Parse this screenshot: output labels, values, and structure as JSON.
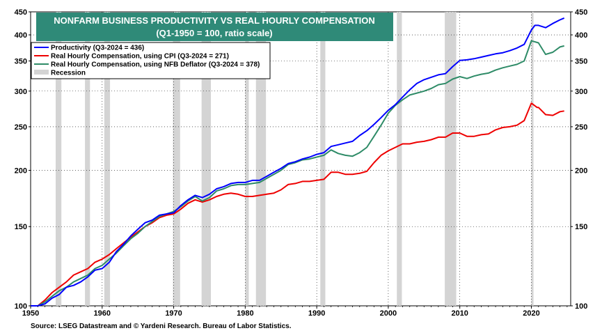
{
  "chart_data": {
    "type": "line",
    "title": "NONFARM BUSINESS PRODUCTIVITY VS REAL HOURLY COMPENSATION",
    "subtitle": "(Q1-1950 = 100, ratio scale)",
    "source": "Source: LSEG Datastream and © Yardeni Research. Bureau of Labor Statistics.",
    "y_scale": "log",
    "xlim": [
      1950,
      2025.5
    ],
    "ylim": [
      100,
      450
    ],
    "x_ticks": [
      {
        "value": 1950,
        "label": "1950"
      },
      {
        "value": 1960,
        "label": "1960"
      },
      {
        "value": 1970,
        "label": "1970"
      },
      {
        "value": 1980,
        "label": "1980"
      },
      {
        "value": 1990,
        "label": "1990"
      },
      {
        "value": 2000,
        "label": "2000"
      },
      {
        "value": 2010,
        "label": "2010"
      },
      {
        "value": 2020,
        "label": "2020"
      }
    ],
    "y_ticks": [
      {
        "value": 100,
        "label": "100"
      },
      {
        "value": 150,
        "label": "150"
      },
      {
        "value": 200,
        "label": "200"
      },
      {
        "value": 250,
        "label": "250"
      },
      {
        "value": 300,
        "label": "300"
      },
      {
        "value": 350,
        "label": "350"
      },
      {
        "value": 400,
        "label": "400"
      },
      {
        "value": 450,
        "label": "450"
      }
    ],
    "grid": true,
    "legend_position": "top-left",
    "recession_label": "Recession",
    "recession_color": "#d4d4d4",
    "recessions": [
      [
        1953.5,
        1954.3
      ],
      [
        1957.6,
        1958.3
      ],
      [
        1960.3,
        1961.1
      ],
      [
        1969.9,
        1970.9
      ],
      [
        1973.9,
        1975.2
      ],
      [
        1980.0,
        1980.5
      ],
      [
        1981.5,
        1982.9
      ],
      [
        1990.5,
        1991.2
      ],
      [
        2001.2,
        2001.9
      ],
      [
        2007.9,
        2009.5
      ],
      [
        2020.0,
        2020.3
      ]
    ],
    "series": [
      {
        "name": "Productivity (Q3-2024 = 436)",
        "color": "#0000ff",
        "points": [
          [
            1950,
            100
          ],
          [
            1951,
            100
          ],
          [
            1952,
            101
          ],
          [
            1953,
            104
          ],
          [
            1954,
            106
          ],
          [
            1955,
            110
          ],
          [
            1956,
            111
          ],
          [
            1957,
            113
          ],
          [
            1958,
            116
          ],
          [
            1959,
            120
          ],
          [
            1960,
            121
          ],
          [
            1961,
            125
          ],
          [
            1962,
            132
          ],
          [
            1963,
            137
          ],
          [
            1964,
            143
          ],
          [
            1965,
            148
          ],
          [
            1966,
            153
          ],
          [
            1967,
            155
          ],
          [
            1968,
            159
          ],
          [
            1969,
            160
          ],
          [
            1970,
            161
          ],
          [
            1971,
            167
          ],
          [
            1972,
            172
          ],
          [
            1973,
            176
          ],
          [
            1974,
            174
          ],
          [
            1975,
            177
          ],
          [
            1976,
            182
          ],
          [
            1977,
            184
          ],
          [
            1978,
            187
          ],
          [
            1979,
            188
          ],
          [
            1980,
            188
          ],
          [
            1981,
            190
          ],
          [
            1982,
            190
          ],
          [
            1983,
            194
          ],
          [
            1984,
            198
          ],
          [
            1985,
            202
          ],
          [
            1986,
            207
          ],
          [
            1987,
            209
          ],
          [
            1988,
            212
          ],
          [
            1989,
            214
          ],
          [
            1990,
            217
          ],
          [
            1991,
            219
          ],
          [
            1992,
            226
          ],
          [
            1993,
            228
          ],
          [
            1994,
            230
          ],
          [
            1995,
            232
          ],
          [
            1996,
            239
          ],
          [
            1997,
            245
          ],
          [
            1998,
            253
          ],
          [
            1999,
            262
          ],
          [
            2000,
            272
          ],
          [
            2001,
            280
          ],
          [
            2002,
            291
          ],
          [
            2003,
            302
          ],
          [
            2004,
            312
          ],
          [
            2005,
            318
          ],
          [
            2006,
            322
          ],
          [
            2007,
            326
          ],
          [
            2008,
            328
          ],
          [
            2009,
            340
          ],
          [
            2010,
            351
          ],
          [
            2011,
            352
          ],
          [
            2012,
            354
          ],
          [
            2013,
            357
          ],
          [
            2014,
            360
          ],
          [
            2015,
            363
          ],
          [
            2016,
            365
          ],
          [
            2017,
            369
          ],
          [
            2018,
            374
          ],
          [
            2019,
            381
          ],
          [
            2020,
            410
          ],
          [
            2020.5,
            420
          ],
          [
            2021,
            420
          ],
          [
            2022,
            415
          ],
          [
            2023,
            424
          ],
          [
            2024,
            432
          ],
          [
            2024.6,
            436
          ]
        ]
      },
      {
        "name": "Real Hourly Compensation, using CPI  (Q3-2024 = 271)",
        "color": "#ee0000",
        "points": [
          [
            1950,
            100
          ],
          [
            1951,
            100
          ],
          [
            1952,
            103
          ],
          [
            1953,
            107
          ],
          [
            1954,
            110
          ],
          [
            1955,
            113
          ],
          [
            1956,
            117
          ],
          [
            1957,
            119
          ],
          [
            1958,
            121
          ],
          [
            1959,
            125
          ],
          [
            1960,
            127
          ],
          [
            1961,
            130
          ],
          [
            1962,
            134
          ],
          [
            1963,
            138
          ],
          [
            1964,
            142
          ],
          [
            1965,
            146
          ],
          [
            1966,
            150
          ],
          [
            1967,
            153
          ],
          [
            1968,
            157
          ],
          [
            1969,
            159
          ],
          [
            1970,
            160
          ],
          [
            1971,
            164
          ],
          [
            1972,
            169
          ],
          [
            1973,
            172
          ],
          [
            1974,
            170
          ],
          [
            1975,
            172
          ],
          [
            1976,
            175
          ],
          [
            1977,
            177
          ],
          [
            1978,
            178
          ],
          [
            1979,
            177
          ],
          [
            1980,
            175
          ],
          [
            1981,
            175
          ],
          [
            1982,
            176
          ],
          [
            1983,
            177
          ],
          [
            1984,
            178
          ],
          [
            1985,
            181
          ],
          [
            1986,
            186
          ],
          [
            1987,
            187
          ],
          [
            1988,
            189
          ],
          [
            1989,
            189
          ],
          [
            1990,
            190
          ],
          [
            1991,
            191
          ],
          [
            1992,
            198
          ],
          [
            1993,
            198
          ],
          [
            1994,
            196
          ],
          [
            1995,
            196
          ],
          [
            1996,
            197
          ],
          [
            1997,
            199
          ],
          [
            1998,
            208
          ],
          [
            1999,
            216
          ],
          [
            2000,
            221
          ],
          [
            2001,
            225
          ],
          [
            2002,
            229
          ],
          [
            2003,
            229
          ],
          [
            2004,
            231
          ],
          [
            2005,
            232
          ],
          [
            2006,
            234
          ],
          [
            2007,
            237
          ],
          [
            2008,
            237
          ],
          [
            2009,
            242
          ],
          [
            2010,
            242
          ],
          [
            2011,
            238
          ],
          [
            2012,
            238
          ],
          [
            2013,
            240
          ],
          [
            2014,
            241
          ],
          [
            2015,
            246
          ],
          [
            2016,
            249
          ],
          [
            2017,
            250
          ],
          [
            2018,
            252
          ],
          [
            2019,
            258
          ],
          [
            2020,
            282
          ],
          [
            2020.8,
            276
          ],
          [
            2021,
            276
          ],
          [
            2022,
            266
          ],
          [
            2023,
            265
          ],
          [
            2024,
            270
          ],
          [
            2024.6,
            271
          ]
        ]
      },
      {
        "name": "Real Hourly Compensation, using NFB Deflator (Q3-2024 = 378)",
        "color": "#2e8b67",
        "points": [
          [
            1950,
            100
          ],
          [
            1951,
            100
          ],
          [
            1952,
            102
          ],
          [
            1953,
            105
          ],
          [
            1954,
            108
          ],
          [
            1955,
            110
          ],
          [
            1956,
            113
          ],
          [
            1957,
            115
          ],
          [
            1958,
            117
          ],
          [
            1959,
            121
          ],
          [
            1960,
            123
          ],
          [
            1961,
            127
          ],
          [
            1962,
            131
          ],
          [
            1963,
            136
          ],
          [
            1964,
            141
          ],
          [
            1965,
            145
          ],
          [
            1966,
            150
          ],
          [
            1967,
            154
          ],
          [
            1968,
            158
          ],
          [
            1969,
            160
          ],
          [
            1970,
            162
          ],
          [
            1971,
            166
          ],
          [
            1972,
            171
          ],
          [
            1973,
            175
          ],
          [
            1974,
            171
          ],
          [
            1975,
            174
          ],
          [
            1976,
            180
          ],
          [
            1977,
            182
          ],
          [
            1978,
            185
          ],
          [
            1979,
            186
          ],
          [
            1980,
            186
          ],
          [
            1981,
            187
          ],
          [
            1982,
            188
          ],
          [
            1983,
            192
          ],
          [
            1984,
            196
          ],
          [
            1985,
            200
          ],
          [
            1986,
            206
          ],
          [
            1987,
            208
          ],
          [
            1988,
            211
          ],
          [
            1989,
            212
          ],
          [
            1990,
            214
          ],
          [
            1991,
            216
          ],
          [
            1992,
            222
          ],
          [
            1993,
            218
          ],
          [
            1994,
            216
          ],
          [
            1995,
            215
          ],
          [
            1996,
            219
          ],
          [
            1997,
            225
          ],
          [
            1998,
            238
          ],
          [
            1999,
            252
          ],
          [
            2000,
            268
          ],
          [
            2001,
            279
          ],
          [
            2002,
            287
          ],
          [
            2003,
            294
          ],
          [
            2004,
            297
          ],
          [
            2005,
            300
          ],
          [
            2006,
            304
          ],
          [
            2007,
            310
          ],
          [
            2008,
            312
          ],
          [
            2009,
            319
          ],
          [
            2010,
            323
          ],
          [
            2011,
            320
          ],
          [
            2012,
            324
          ],
          [
            2013,
            327
          ],
          [
            2014,
            329
          ],
          [
            2015,
            334
          ],
          [
            2016,
            338
          ],
          [
            2017,
            341
          ],
          [
            2018,
            344
          ],
          [
            2019,
            350
          ],
          [
            2020,
            388
          ],
          [
            2021,
            384
          ],
          [
            2022,
            362
          ],
          [
            2023,
            366
          ],
          [
            2024,
            376
          ],
          [
            2024.6,
            378
          ]
        ]
      }
    ]
  }
}
